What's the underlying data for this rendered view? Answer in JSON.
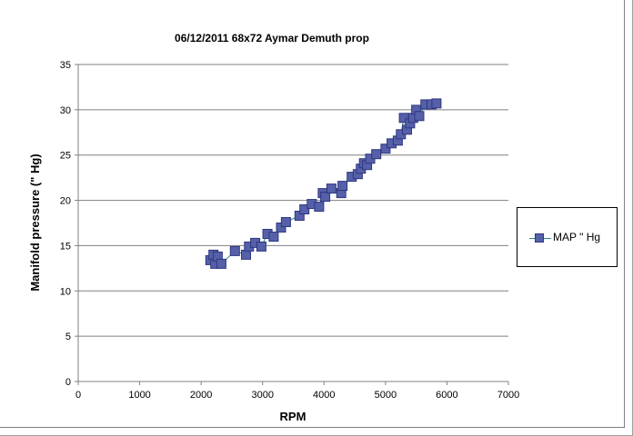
{
  "chart_data": {
    "type": "line",
    "title": "06/12/2011 68x72 Aymar Demuth  prop",
    "xlabel": "RPM",
    "ylabel": "Manifold pressure (\" Hg)",
    "xlim": [
      0,
      7000
    ],
    "ylim": [
      0,
      35
    ],
    "xticks": [
      "0",
      "1000",
      "2000",
      "3000",
      "4000",
      "5000",
      "6000",
      "7000"
    ],
    "yticks": [
      "0",
      "5",
      "10",
      "15",
      "20",
      "25",
      "30",
      "35"
    ],
    "grid": "horizontal",
    "legend": "right",
    "series": [
      {
        "name": "MAP \" Hg",
        "color": "#5560a8",
        "line_color": "#2a8a84",
        "marker": "square",
        "x": [
          2150,
          2200,
          2230,
          2270,
          2330,
          2550,
          2730,
          2780,
          2880,
          2980,
          3080,
          3180,
          3300,
          3380,
          3600,
          3680,
          3800,
          3920,
          3980,
          4020,
          4120,
          4280,
          4300,
          4450,
          4550,
          4600,
          4650,
          4700,
          4750,
          4850,
          5000,
          5100,
          5200,
          5250,
          5300,
          5350,
          5400,
          5450,
          5500,
          5550,
          5650,
          5750,
          5830
        ],
        "y": [
          13.4,
          14.0,
          13.0,
          13.8,
          13.0,
          14.4,
          14.0,
          14.9,
          15.3,
          14.9,
          16.3,
          16.0,
          17.0,
          17.6,
          18.3,
          19.0,
          19.6,
          19.3,
          20.8,
          20.4,
          21.3,
          20.8,
          21.6,
          22.6,
          22.9,
          23.5,
          24.1,
          23.9,
          24.6,
          25.1,
          25.7,
          26.3,
          26.6,
          27.3,
          29.1,
          27.8,
          28.5,
          29.1,
          30.0,
          29.3,
          30.6,
          30.6,
          30.7
        ]
      }
    ]
  }
}
